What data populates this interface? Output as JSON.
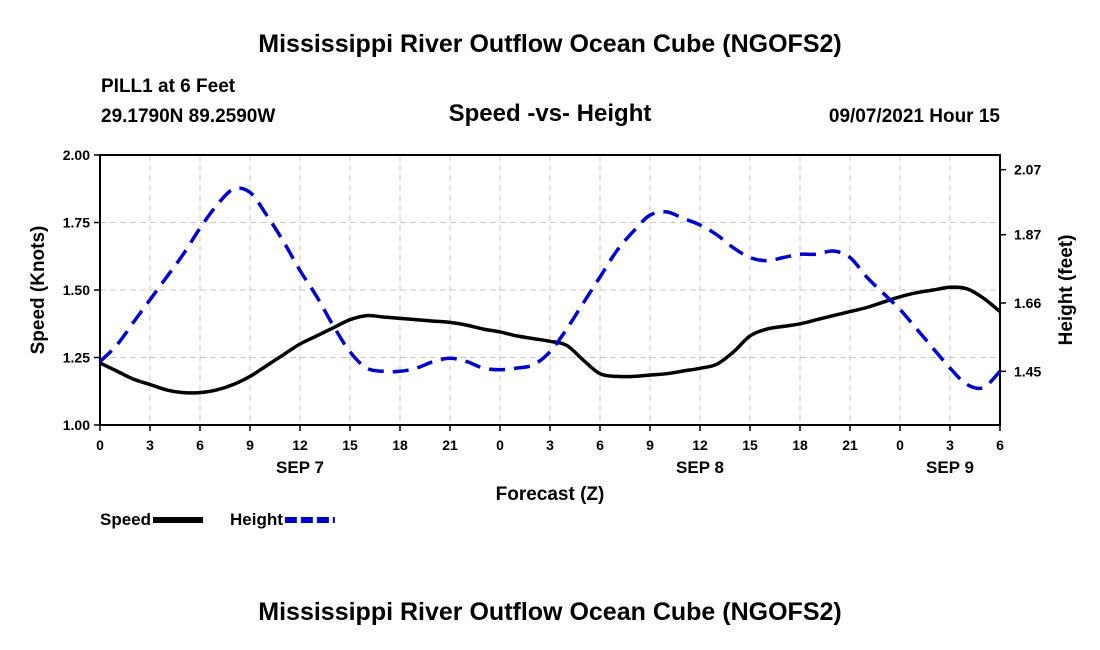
{
  "header": {
    "title_top": "Mississippi River Outflow Ocean Cube (NGOFS2)",
    "station_line": "PILL1 at 6 Feet",
    "coords": "29.1790N  89.2590W",
    "subtitle": "Speed -vs- Height",
    "datetime": "09/07/2021 Hour 15",
    "title_bottom": "Mississippi River Outflow Ocean Cube (NGOFS2)"
  },
  "chart_data": {
    "type": "line",
    "title": "Speed -vs- Height",
    "xlabel": "Forecast (Z)",
    "ylabel_left": "Speed (Knots)",
    "ylabel_right": "Height (feet)",
    "x_range_hours": [
      0,
      54
    ],
    "x_ticks": [
      {
        "hour": 0,
        "label": "0"
      },
      {
        "hour": 3,
        "label": "3"
      },
      {
        "hour": 6,
        "label": "6"
      },
      {
        "hour": 9,
        "label": "9"
      },
      {
        "hour": 12,
        "label": "12"
      },
      {
        "hour": 15,
        "label": "15"
      },
      {
        "hour": 18,
        "label": "18"
      },
      {
        "hour": 21,
        "label": "21"
      },
      {
        "hour": 24,
        "label": "0"
      },
      {
        "hour": 27,
        "label": "3"
      },
      {
        "hour": 30,
        "label": "6"
      },
      {
        "hour": 33,
        "label": "9"
      },
      {
        "hour": 36,
        "label": "12"
      },
      {
        "hour": 39,
        "label": "15"
      },
      {
        "hour": 42,
        "label": "18"
      },
      {
        "hour": 45,
        "label": "21"
      },
      {
        "hour": 48,
        "label": "0"
      },
      {
        "hour": 51,
        "label": "3"
      },
      {
        "hour": 54,
        "label": "6"
      }
    ],
    "date_labels": [
      {
        "hour": 12,
        "label": "SEP 7"
      },
      {
        "hour": 36,
        "label": "SEP 8"
      },
      {
        "hour": 51,
        "label": "SEP 9"
      }
    ],
    "y_left": {
      "range": [
        1.0,
        2.0
      ],
      "ticks": [
        "1.00",
        "1.25",
        "1.50",
        "1.75",
        "2.00"
      ]
    },
    "y_right": {
      "range": [
        1.285,
        2.115
      ],
      "ticks": [
        "1.45",
        "1.66",
        "1.87",
        "2.07"
      ]
    },
    "grid": true,
    "series": [
      {
        "name": "Speed",
        "axis": "left",
        "color": "#000000",
        "style": "solid",
        "x": [
          0,
          1,
          2,
          3,
          4,
          5,
          6,
          7,
          8,
          9,
          10,
          11,
          12,
          13,
          14,
          15,
          16,
          17,
          18,
          19,
          20,
          21,
          22,
          23,
          24,
          25,
          26,
          27,
          28,
          29,
          30,
          31,
          32,
          33,
          34,
          35,
          36,
          37,
          38,
          39,
          40,
          41,
          42,
          43,
          44,
          45,
          46,
          47,
          48,
          49,
          50,
          51,
          52,
          53,
          54
        ],
        "values": [
          1.23,
          1.2,
          1.17,
          1.15,
          1.13,
          1.12,
          1.12,
          1.13,
          1.15,
          1.18,
          1.22,
          1.26,
          1.3,
          1.33,
          1.36,
          1.39,
          1.405,
          1.4,
          1.395,
          1.39,
          1.385,
          1.38,
          1.37,
          1.355,
          1.345,
          1.33,
          1.32,
          1.31,
          1.295,
          1.24,
          1.19,
          1.18,
          1.18,
          1.185,
          1.19,
          1.2,
          1.21,
          1.225,
          1.27,
          1.33,
          1.355,
          1.365,
          1.375,
          1.39,
          1.405,
          1.42,
          1.435,
          1.455,
          1.475,
          1.49,
          1.5,
          1.51,
          1.505,
          1.47,
          1.42
        ]
      },
      {
        "name": "Height",
        "axis": "right",
        "color": "#0000cc",
        "style": "dashed",
        "x": [
          0,
          1,
          2,
          3,
          4,
          5,
          6,
          7,
          8,
          9,
          10,
          11,
          12,
          13,
          14,
          15,
          16,
          17,
          18,
          19,
          20,
          21,
          22,
          23,
          24,
          25,
          26,
          27,
          28,
          29,
          30,
          31,
          32,
          33,
          34,
          35,
          36,
          37,
          38,
          39,
          40,
          41,
          42,
          43,
          44,
          45,
          46,
          47,
          48,
          49,
          50,
          51,
          52,
          53,
          54
        ],
        "values": [
          1.48,
          1.53,
          1.6,
          1.67,
          1.74,
          1.81,
          1.89,
          1.96,
          2.01,
          2.0,
          1.93,
          1.85,
          1.76,
          1.68,
          1.59,
          1.51,
          1.46,
          1.45,
          1.45,
          1.46,
          1.48,
          1.49,
          1.48,
          1.46,
          1.455,
          1.46,
          1.47,
          1.51,
          1.58,
          1.66,
          1.74,
          1.82,
          1.88,
          1.93,
          1.94,
          1.92,
          1.9,
          1.87,
          1.83,
          1.8,
          1.79,
          1.8,
          1.81,
          1.81,
          1.82,
          1.8,
          1.74,
          1.69,
          1.64,
          1.58,
          1.52,
          1.46,
          1.41,
          1.4,
          1.45
        ]
      }
    ],
    "legend": {
      "placement": "bottom-left",
      "items": [
        "Speed",
        "Height"
      ]
    }
  }
}
